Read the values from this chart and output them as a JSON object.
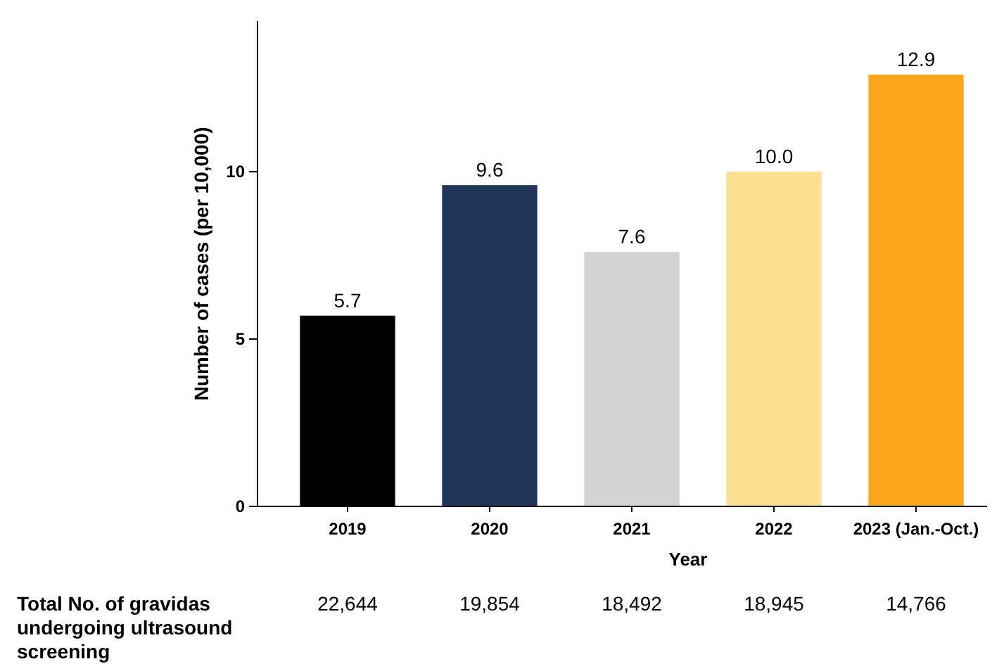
{
  "chart_data": {
    "type": "bar",
    "categories": [
      "2019",
      "2020",
      "2021",
      "2022",
      "2023 (Jan.-Oct.)"
    ],
    "values": [
      5.7,
      9.6,
      7.6,
      10.0,
      12.9
    ],
    "colors": [
      "#000000",
      "#1f3557",
      "#d3d3d3",
      "#fddf91",
      "#fba51a"
    ],
    "ylim": [
      0,
      14.5
    ],
    "yticks": [
      0,
      5,
      10
    ],
    "data_labels": true,
    "value_labels": [
      "5.7",
      "9.6",
      "7.6",
      "10.0",
      "12.9"
    ],
    "xlabel": "Year",
    "ylabel": "Number of cases (per 10,000)",
    "annotations": [
      "Total No. of gravidas undergoing ultrasound screening",
      "22,644",
      "19,854",
      "18,492",
      "18,945",
      "14,766"
    ]
  }
}
